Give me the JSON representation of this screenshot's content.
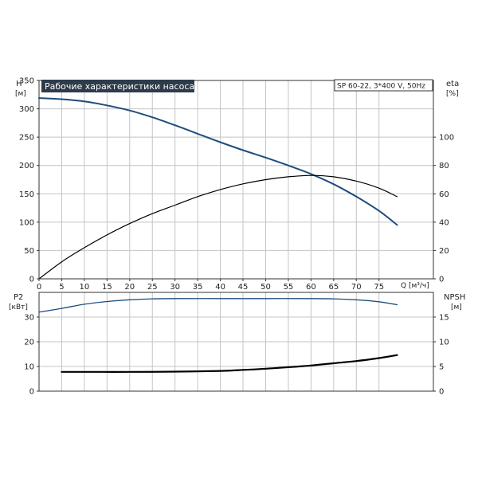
{
  "colors": {
    "blue_curve": "#1e4d7e",
    "black_curve": "#000000",
    "title_bg": "#2e3b4a",
    "title_text": "#ffffff"
  },
  "chart_data": [
    {
      "type": "line",
      "title": "Рабочие характеристики насоса",
      "subtitle": "SP 60-22, 3*400 V, 50Hz",
      "xlabel": "Q [м³/ч]",
      "x_ticks": [
        0,
        5,
        10,
        15,
        20,
        25,
        30,
        35,
        40,
        45,
        50,
        55,
        60,
        65,
        70,
        75
      ],
      "xlim": [
        0,
        87
      ],
      "grid": true,
      "y_left": {
        "label": "H",
        "unit": "[м]",
        "ticks": [
          0,
          50,
          100,
          150,
          200,
          250,
          300,
          350
        ],
        "ylim": [
          0,
          350
        ]
      },
      "y_right": {
        "label": "eta",
        "unit": "[%]",
        "ticks": [
          0,
          20,
          40,
          60,
          80,
          100
        ],
        "ylim": [
          0,
          140
        ]
      },
      "series": [
        {
          "axis": "left",
          "color": "#1e4d7e",
          "x": [
            0,
            5,
            10,
            15,
            20,
            25,
            30,
            35,
            40,
            45,
            50,
            55,
            60,
            65,
            70,
            75,
            79
          ],
          "y": [
            319,
            317,
            313,
            306,
            297,
            285,
            271,
            256,
            241,
            227,
            214,
            200,
            185,
            167,
            145,
            120,
            95
          ]
        },
        {
          "axis": "right",
          "color": "#000000",
          "x": [
            0,
            5,
            10,
            15,
            20,
            25,
            30,
            35,
            40,
            45,
            50,
            55,
            60,
            65,
            70,
            75,
            79
          ],
          "y": [
            0,
            12,
            22,
            31,
            39,
            46,
            52,
            58,
            63,
            67,
            70,
            72,
            73,
            72,
            69,
            64,
            58
          ]
        }
      ]
    },
    {
      "type": "line",
      "ylabel_left": "P2",
      "unit_left": "[кВт]",
      "ylabel_right": "NPSH",
      "unit_right": "[м]",
      "x_ticks": [
        0,
        5,
        10,
        15,
        20,
        25,
        30,
        35,
        40,
        45,
        50,
        55,
        60,
        65,
        70,
        75
      ],
      "xlim": [
        0,
        87
      ],
      "grid": true,
      "y_left": {
        "ticks": [
          0,
          10,
          20,
          30
        ],
        "ylim": [
          0,
          40
        ]
      },
      "y_right": {
        "ticks": [
          0,
          5,
          10,
          15
        ],
        "ylim": [
          0,
          20
        ]
      },
      "series": [
        {
          "axis": "left",
          "color": "#1e4d7e",
          "x": [
            0,
            5,
            10,
            15,
            20,
            25,
            30,
            40,
            50,
            60,
            65,
            70,
            75,
            79
          ],
          "y": [
            32,
            33.5,
            35.2,
            36.3,
            37,
            37.4,
            37.5,
            37.5,
            37.5,
            37.5,
            37.4,
            37,
            36.2,
            35
          ]
        },
        {
          "axis": "right",
          "color": "#000000",
          "x": [
            5,
            10,
            20,
            30,
            40,
            45,
            50,
            55,
            60,
            65,
            70,
            75,
            79
          ],
          "y": [
            3.9,
            3.9,
            3.9,
            3.95,
            4.1,
            4.3,
            4.55,
            4.85,
            5.2,
            5.65,
            6.1,
            6.7,
            7.3
          ]
        }
      ]
    }
  ]
}
